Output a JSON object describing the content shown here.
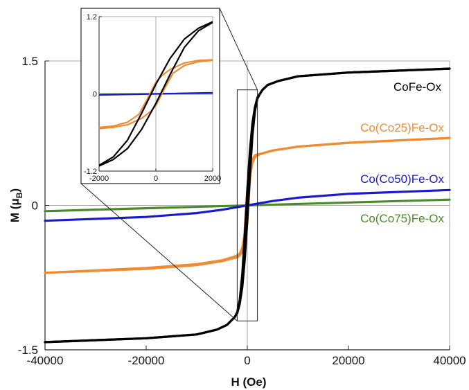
{
  "chart_data": [
    {
      "type": "line",
      "title": "",
      "xlabel": "H (Oe)",
      "ylabel_main": "M (μ",
      "ylabel_sub": "B",
      "ylabel_close": ")",
      "xlim": [
        -40000,
        40000
      ],
      "ylim": [
        -1.5,
        1.5
      ],
      "x_ticks": [
        -40000,
        -20000,
        0,
        20000,
        40000
      ],
      "x_tick_labels": [
        "-40000",
        "-20000",
        "0",
        "20000",
        "40000"
      ],
      "y_ticks": [
        -1.5,
        0,
        1.5
      ],
      "y_tick_labels": [
        "-1.5",
        "0",
        "1.5"
      ],
      "zoom_box": {
        "x": [
          -2000,
          2000
        ],
        "y": [
          -1.2,
          1.2
        ]
      },
      "series": [
        {
          "name": "CoFe-Ox",
          "color": "#000000",
          "label_color": "#000000",
          "branches": [
            {
              "x": [
                -40000,
                -20000,
                -10000,
                -6000,
                -4000,
                -2500,
                -2000,
                -1500,
                -1000,
                -500,
                0,
                500,
                1000,
                1500,
                2000,
                2500,
                3000,
                4000,
                6000,
                10000,
                20000,
                40000
              ],
              "y": [
                -1.42,
                -1.38,
                -1.34,
                -1.29,
                -1.24,
                -1.16,
                -1.12,
                -1.02,
                -0.85,
                -0.55,
                -0.15,
                0.3,
                0.72,
                0.98,
                1.11,
                1.16,
                1.2,
                1.25,
                1.29,
                1.34,
                1.38,
                1.42
              ]
            },
            {
              "x": [
                40000,
                20000,
                10000,
                6000,
                4000,
                3000,
                2500,
                2000,
                1500,
                1000,
                500,
                0,
                -500,
                -1000,
                -1500,
                -2000,
                -2500,
                -4000,
                -6000,
                -10000,
                -20000,
                -40000
              ],
              "y": [
                1.42,
                1.38,
                1.34,
                1.29,
                1.25,
                1.2,
                1.16,
                1.12,
                1.02,
                0.85,
                0.55,
                0.15,
                -0.3,
                -0.72,
                -0.98,
                -1.11,
                -1.16,
                -1.24,
                -1.29,
                -1.34,
                -1.38,
                -1.42
              ]
            }
          ]
        },
        {
          "name": "Co(Co25)Fe-Ox",
          "color": "#ef8c33",
          "label_color": "#ef8c33",
          "branches": [
            {
              "x": [
                -40000,
                -20000,
                -10000,
                -5000,
                -3000,
                -2000,
                -1500,
                -1000,
                -500,
                -200,
                0,
                300,
                600,
                1000,
                1500,
                2000,
                3000,
                5000,
                10000,
                20000,
                40000
              ],
              "y": [
                -0.7,
                -0.66,
                -0.62,
                -0.58,
                -0.55,
                -0.54,
                -0.52,
                -0.48,
                -0.38,
                -0.28,
                -0.18,
                0.08,
                0.32,
                0.44,
                0.5,
                0.52,
                0.54,
                0.57,
                0.61,
                0.65,
                0.7
              ]
            },
            {
              "x": [
                40000,
                20000,
                10000,
                5000,
                3000,
                2000,
                1500,
                1000,
                500,
                200,
                0,
                -300,
                -600,
                -1000,
                -1500,
                -2000,
                -3000,
                -5000,
                -10000,
                -20000,
                -40000
              ],
              "y": [
                0.7,
                0.65,
                0.61,
                0.57,
                0.54,
                0.53,
                0.52,
                0.48,
                0.38,
                0.28,
                0.18,
                -0.08,
                -0.32,
                -0.44,
                -0.5,
                -0.52,
                -0.54,
                -0.57,
                -0.61,
                -0.65,
                -0.7
              ]
            }
          ]
        },
        {
          "name": "Co(Co50)Fe-Ox",
          "color": "#1a1acc",
          "label_color": "#1a1acc",
          "branches": [
            {
              "x": [
                -40000,
                -20000,
                -10000,
                -5000,
                0,
                5000,
                10000,
                20000,
                40000
              ],
              "y": [
                -0.16,
                -0.12,
                -0.08,
                -0.045,
                0,
                0.045,
                0.08,
                0.12,
                0.16
              ]
            }
          ]
        },
        {
          "name": "Co(Co75)Fe-Ox",
          "color": "#4a8a2a",
          "label_color": "#4a8a2a",
          "branches": [
            {
              "x": [
                -40000,
                40000
              ],
              "y": [
                -0.06,
                0.06
              ]
            }
          ]
        }
      ]
    },
    {
      "type": "line",
      "title": "",
      "xlim": [
        -2000,
        2000
      ],
      "ylim": [
        -1.2,
        1.2
      ],
      "x_ticks": [
        -2000,
        0,
        2000
      ],
      "x_tick_labels": [
        "-2000",
        "0",
        "2000"
      ],
      "y_ticks": [
        -1.2,
        0,
        1.2
      ],
      "y_tick_labels": [
        "-1.2",
        "0",
        "1.2"
      ]
    }
  ]
}
